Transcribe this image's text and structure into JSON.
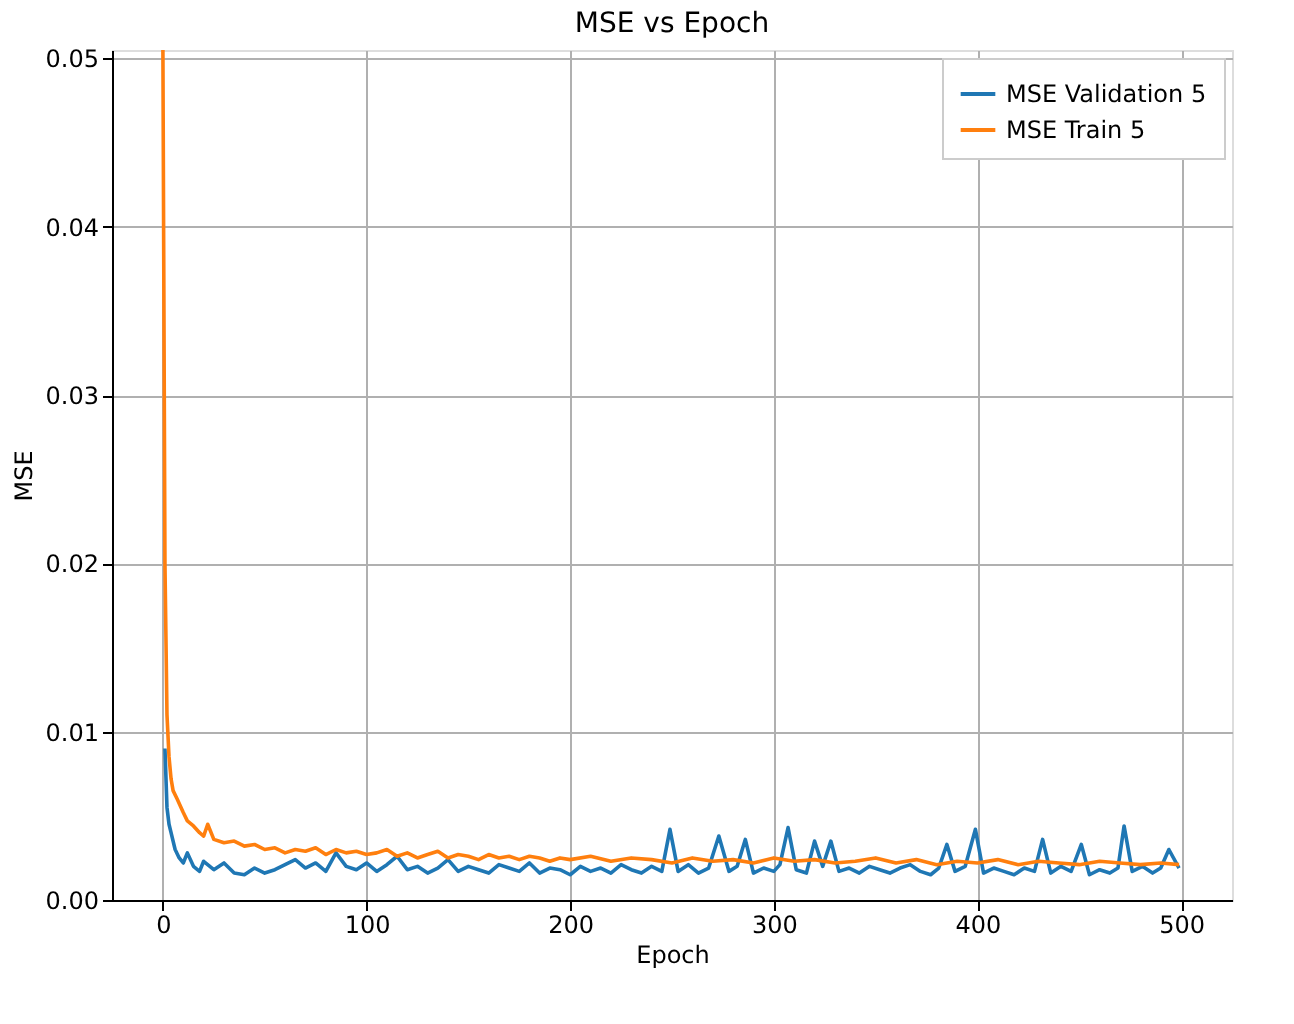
{
  "chart_data": {
    "type": "line",
    "title": "MSE vs Epoch",
    "xlabel": "Epoch",
    "ylabel": "MSE",
    "xlim": [
      -25,
      525
    ],
    "ylim": [
      0,
      0.0505
    ],
    "xticks": [
      0,
      100,
      200,
      300,
      400,
      500
    ],
    "yticks": [
      {
        "value": 0,
        "label": "0.00"
      },
      {
        "value": 0.01,
        "label": "0.01"
      },
      {
        "value": 0.02,
        "label": "0.02"
      },
      {
        "value": 0.03,
        "label": "0.03"
      },
      {
        "value": 0.04,
        "label": "0.04"
      },
      {
        "value": 0.05,
        "label": "0.05"
      }
    ],
    "grid": true,
    "legend": "top right",
    "line_style": "solid",
    "marker": "none",
    "series": [
      {
        "name": "MSE Validation 5",
        "color": "#1f77b4",
        "x": [
          1,
          2,
          3,
          4,
          6,
          8,
          10,
          12,
          15,
          18,
          20,
          25,
          30,
          35,
          40,
          45,
          50,
          55,
          60,
          65,
          70,
          75,
          80,
          85,
          90,
          95,
          100,
          105,
          110,
          115,
          120,
          125,
          130,
          135,
          140,
          145,
          150,
          155,
          160,
          165,
          170,
          175,
          180,
          185,
          190,
          195,
          200,
          205,
          210,
          215,
          220,
          225,
          230,
          235,
          240,
          245,
          249,
          253,
          258,
          263,
          268,
          273,
          278,
          282,
          286,
          290,
          295,
          300,
          303,
          307,
          311,
          316,
          320,
          324,
          328,
          332,
          337,
          342,
          347,
          352,
          357,
          362,
          367,
          372,
          377,
          381,
          385,
          389,
          394,
          399,
          403,
          408,
          413,
          418,
          423,
          428,
          432,
          436,
          441,
          446,
          451,
          455,
          460,
          465,
          469,
          472,
          476,
          481,
          486,
          490,
          494,
          499
        ],
        "values": [
          0.009,
          0.0055,
          0.0045,
          0.004,
          0.003,
          0.0025,
          0.0022,
          0.0028,
          0.002,
          0.0017,
          0.0023,
          0.0018,
          0.0022,
          0.0016,
          0.0015,
          0.0019,
          0.0016,
          0.0018,
          0.0021,
          0.0024,
          0.0019,
          0.0022,
          0.0017,
          0.0028,
          0.002,
          0.0018,
          0.0022,
          0.0017,
          0.0021,
          0.0026,
          0.0018,
          0.002,
          0.0016,
          0.0019,
          0.0024,
          0.0017,
          0.002,
          0.0018,
          0.0016,
          0.0021,
          0.0019,
          0.0017,
          0.0022,
          0.0016,
          0.0019,
          0.0018,
          0.0015,
          0.002,
          0.0017,
          0.0019,
          0.0016,
          0.0021,
          0.0018,
          0.0016,
          0.002,
          0.0017,
          0.0042,
          0.0017,
          0.0021,
          0.0016,
          0.0019,
          0.0038,
          0.0017,
          0.002,
          0.0036,
          0.0016,
          0.0019,
          0.0017,
          0.0021,
          0.0043,
          0.0018,
          0.0016,
          0.0035,
          0.002,
          0.0035,
          0.0017,
          0.0019,
          0.0016,
          0.002,
          0.0018,
          0.0016,
          0.0019,
          0.0021,
          0.0017,
          0.0015,
          0.0019,
          0.0033,
          0.0017,
          0.002,
          0.0042,
          0.0016,
          0.0019,
          0.0017,
          0.0015,
          0.0019,
          0.0017,
          0.0036,
          0.0016,
          0.002,
          0.0017,
          0.0033,
          0.0015,
          0.0018,
          0.0016,
          0.0019,
          0.0044,
          0.0017,
          0.002,
          0.0016,
          0.0019,
          0.003,
          0.0019
        ]
      },
      {
        "name": "MSE Train 5",
        "color": "#ff7f0e",
        "x": [
          0,
          1,
          2,
          3,
          4,
          5,
          7,
          10,
          12,
          15,
          18,
          20,
          22,
          25,
          30,
          35,
          40,
          45,
          50,
          55,
          60,
          65,
          70,
          75,
          80,
          85,
          90,
          95,
          100,
          105,
          110,
          115,
          120,
          125,
          130,
          135,
          140,
          145,
          150,
          155,
          160,
          165,
          170,
          175,
          180,
          185,
          190,
          195,
          200,
          210,
          220,
          230,
          240,
          250,
          260,
          270,
          280,
          290,
          300,
          310,
          320,
          330,
          340,
          350,
          360,
          370,
          380,
          390,
          400,
          410,
          420,
          430,
          440,
          450,
          460,
          470,
          480,
          490,
          499
        ],
        "values": [
          0.0505,
          0.02,
          0.011,
          0.0085,
          0.0072,
          0.0065,
          0.006,
          0.0052,
          0.0047,
          0.0044,
          0.004,
          0.0038,
          0.0045,
          0.0036,
          0.0034,
          0.0035,
          0.0032,
          0.0033,
          0.003,
          0.0031,
          0.0028,
          0.003,
          0.0029,
          0.0031,
          0.0027,
          0.003,
          0.0028,
          0.0029,
          0.0027,
          0.0028,
          0.003,
          0.0026,
          0.0028,
          0.0025,
          0.0027,
          0.0029,
          0.0025,
          0.0027,
          0.0026,
          0.0024,
          0.0027,
          0.0025,
          0.0026,
          0.0024,
          0.0026,
          0.0025,
          0.0023,
          0.0025,
          0.0024,
          0.0026,
          0.0023,
          0.0025,
          0.0024,
          0.0022,
          0.0025,
          0.0023,
          0.0024,
          0.0022,
          0.0025,
          0.0023,
          0.0024,
          0.0022,
          0.0023,
          0.0025,
          0.0022,
          0.0024,
          0.0021,
          0.0023,
          0.0022,
          0.0024,
          0.0021,
          0.0023,
          0.0022,
          0.0021,
          0.0023,
          0.0022,
          0.0021,
          0.0022,
          0.0021
        ]
      }
    ]
  }
}
